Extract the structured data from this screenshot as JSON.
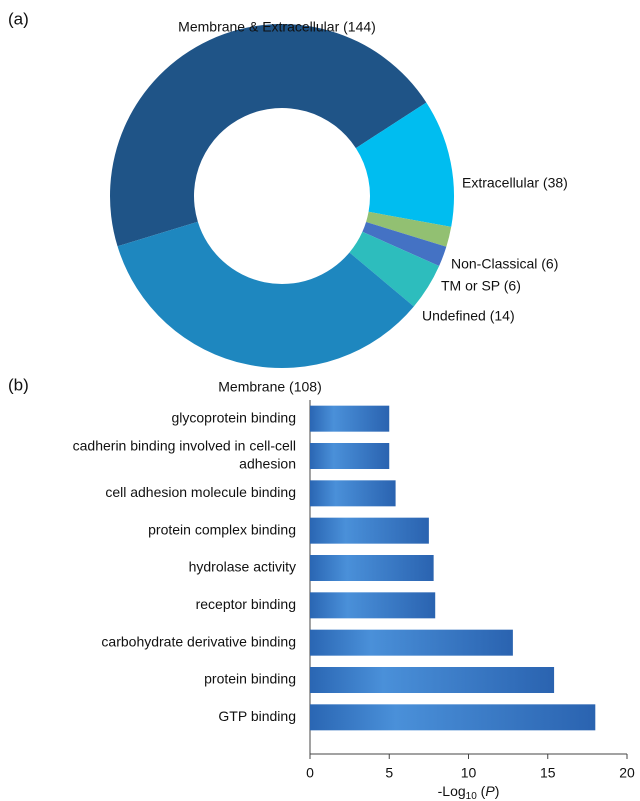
{
  "chart_data": [
    {
      "type": "pie",
      "panel_label": "(a)",
      "donut": true,
      "categories": [
        "Membrane & Extracellular (144)",
        "Extracellular (38)",
        "Non-Classical (6)",
        "TM or SP (6)",
        "Undefined (14)",
        "Membrane (108)"
      ],
      "values": [
        144,
        38,
        6,
        6,
        14,
        108
      ],
      "colors": [
        "#1f5487",
        "#00bdf0",
        "#92c072",
        "#4472c4",
        "#2dbdbd",
        "#1e87bf"
      ]
    },
    {
      "type": "barh",
      "panel_label": "(b)",
      "categories": [
        [
          "glycoprotein binding"
        ],
        [
          "cadherin binding involved in cell-cell",
          "adhesion"
        ],
        [
          "cell adhesion molecule binding"
        ],
        [
          "protein complex binding"
        ],
        [
          "hydrolase activity"
        ],
        [
          "receptor binding"
        ],
        [
          "carbohydrate derivative binding"
        ],
        [
          "protein binding"
        ],
        [
          "GTP binding"
        ]
      ],
      "values": [
        5.0,
        5.0,
        5.4,
        7.5,
        7.8,
        7.9,
        12.8,
        15.4,
        18.0
      ],
      "color": "#2f70bd",
      "xlim": [
        0,
        20
      ],
      "xticks": [
        0,
        5,
        10,
        15,
        20
      ],
      "xlabel_parts": [
        "-Log",
        "10",
        " (",
        "P",
        ")"
      ]
    }
  ]
}
